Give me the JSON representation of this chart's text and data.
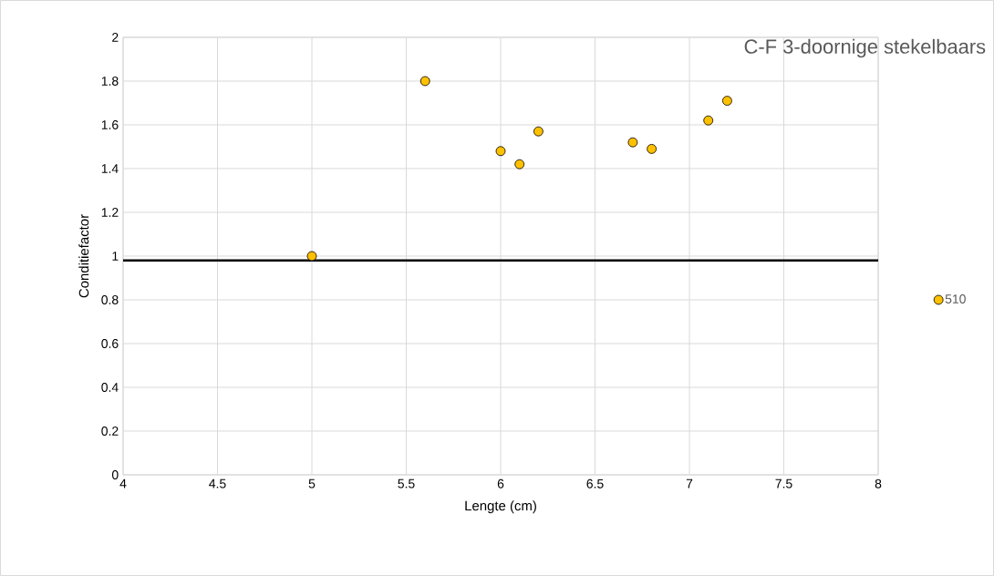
{
  "chart_data": {
    "type": "scatter",
    "title": "C-F 3-doornige stekelbaars",
    "xlabel": "Lengte (cm)",
    "ylabel": "Conditiefactor",
    "series": [
      {
        "name": "510",
        "color": "#ffc000",
        "x": [
          5.0,
          5.6,
          6.0,
          6.1,
          6.2,
          6.7,
          6.8,
          7.1,
          7.2
        ],
        "values": [
          1.0,
          1.8,
          1.48,
          1.42,
          1.57,
          1.52,
          1.49,
          1.62,
          1.71
        ]
      }
    ],
    "xlim": [
      4,
      8
    ],
    "ylim": [
      0,
      2
    ],
    "xticks": [
      4,
      4.5,
      5,
      5.5,
      6,
      6.5,
      7,
      7.5,
      8
    ],
    "yticks": [
      0,
      0.2,
      0.4,
      0.6,
      0.8,
      1,
      1.2,
      1.4,
      1.6,
      1.8,
      2
    ],
    "ref_lines": [
      {
        "axis": "y",
        "value": 0.98,
        "color": "#000000"
      }
    ],
    "grid": true,
    "legend": "right",
    "marker": "circle"
  }
}
